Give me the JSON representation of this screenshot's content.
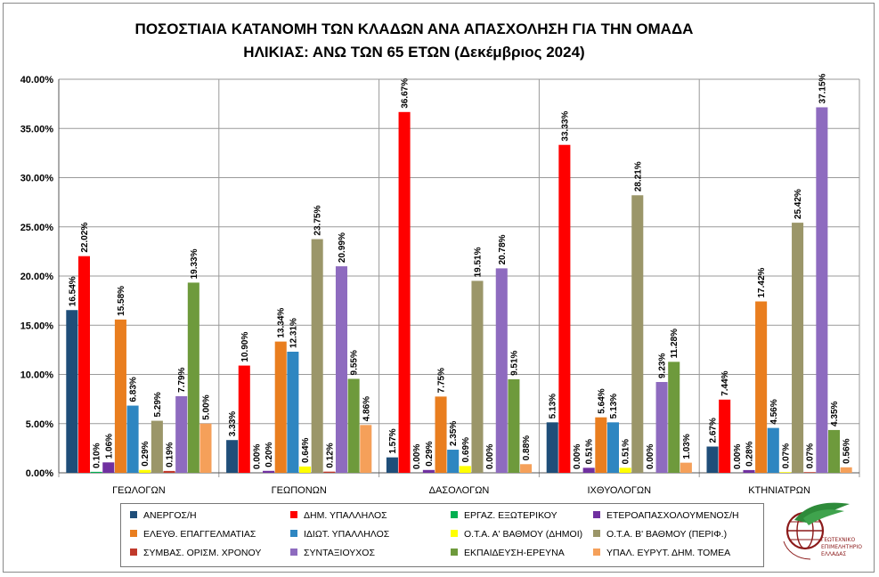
{
  "title_line1": "ΠΟΣΟΣΤΙΑΙΑ ΚΑΤΑΝΟΜΗ  ΤΩΝ ΚΛΑΔΩΝ ΑΝΑ ΑΠΑΣΧΟΛΗΣΗ ΓΙΑ ΤΗΝ ΟΜΑΔΑ",
  "title_line2": "ΗΛΙΚΙΑΣ: ΑΝΩ ΤΩΝ 65 ΕΤΩΝ (Δεκέμβριος 2024)",
  "logo": {
    "text": "ΓΕΩΤΕΧΝΙΚΟ ΕΠΙΜΕΛΗΤΗΡΙΟ ΕΛΛΑΔΑΣ"
  },
  "chart_data": {
    "type": "bar",
    "title": "ΠΟΣΟΣΤΙΑΙΑ ΚΑΤΑΝΟΜΗ  ΤΩΝ ΚΛΑΔΩΝ ΑΝΑ ΑΠΑΣΧΟΛΗΣΗ ΓΙΑ ΤΗΝ ΟΜΑΔΑ ΗΛΙΚΙΑΣ: ΑΝΩ ΤΩΝ 65 ΕΤΩΝ (Δεκέμβριος 2024)",
    "categories": [
      "ΓΕΩΛΟΓΩΝ",
      "ΓΕΩΠΟΝΩΝ",
      "ΔΑΣΟΛΟΓΩΝ",
      "ΙΧΘΥΟΛΟΓΩΝ",
      "ΚΤΗΝΙΑΤΡΩΝ"
    ],
    "ylim": [
      0,
      40
    ],
    "yticks": [
      0,
      5,
      10,
      15,
      20,
      25,
      30,
      35,
      40
    ],
    "ytick_labels": [
      "0.00%",
      "5.00%",
      "10.00%",
      "15.00%",
      "20.00%",
      "25.00%",
      "30.00%",
      "35.00%",
      "40.00%"
    ],
    "grid": true,
    "legend_position": "bottom",
    "series": [
      {
        "name": "ΑΝΕΡΓΟΣ/Η",
        "color": "#1f4e79",
        "values": [
          16.54,
          3.33,
          1.57,
          5.13,
          2.67
        ],
        "labels": [
          "16.54%",
          "3.33%",
          "1.57%",
          "5.13%",
          "2.67%"
        ]
      },
      {
        "name": "ΔΗΜ. ΥΠΑΛΛΗΛΟΣ",
        "color": "#ff0000",
        "values": [
          22.02,
          10.9,
          36.67,
          33.33,
          7.44
        ],
        "labels": [
          "22.02%",
          "10.90%",
          "36.67%",
          "33.33%",
          "7.44%"
        ]
      },
      {
        "name": "ΕΡΓΑΖ. ΕΞΩΤΕΡΙΚΟΥ",
        "color": "#00b050",
        "values": [
          0.1,
          0.0,
          0.0,
          0.0,
          0.0
        ],
        "labels": [
          "0.10%",
          "0.00%",
          "0.00%",
          "0.00%",
          "0.00%"
        ]
      },
      {
        "name": "ΕΤΕΡΟΑΠΑΣΧΟΛΟΥΜΕΝΟΣ/Η",
        "color": "#7030a0",
        "values": [
          1.06,
          0.2,
          0.29,
          0.51,
          0.28
        ],
        "labels": [
          "1.06%",
          "0.20%",
          "0.29%",
          "0.51%",
          "0.28%"
        ]
      },
      {
        "name": "ΕΛΕΥΘ. ΕΠΑΓΓΕΛΜΑΤΙΑΣ",
        "color": "#e97e1f",
        "values": [
          15.58,
          13.34,
          7.75,
          5.64,
          17.42
        ],
        "labels": [
          "15.58%",
          "13.34%",
          "7.75%",
          "5.64%",
          "17.42%"
        ]
      },
      {
        "name": "ΙΔΙΩΤ. ΥΠΑΛΛΗΛΟΣ",
        "color": "#2e86c1",
        "values": [
          6.83,
          12.31,
          2.35,
          5.13,
          4.56
        ],
        "labels": [
          "6.83%",
          "12.31%",
          "2.35%",
          "5.13%",
          "4.56%"
        ]
      },
      {
        "name": "Ο.Τ.Α. Α' ΒΑΘΜΟΥ (ΔΗΜΟΙ)",
        "color": "#ffff00",
        "values": [
          0.29,
          0.64,
          0.69,
          0.51,
          0.07
        ],
        "labels": [
          "0.29%",
          "0.64%",
          "0.69%",
          "0.51%",
          "0.07%"
        ]
      },
      {
        "name": "Ο.Τ.Α. Β' ΒΑΘΜΟΥ (ΠΕΡΙΦ.)",
        "color": "#9b9669",
        "values": [
          5.29,
          23.75,
          19.51,
          28.21,
          25.42
        ],
        "labels": [
          "5.29%",
          "23.75%",
          "19.51%",
          "28.21%",
          "25.42%"
        ]
      },
      {
        "name": "ΣΥΜΒΑΣ. ΟΡΙΣΜ. ΧΡΟΝΟΥ",
        "color": "#c0392b",
        "values": [
          0.19,
          0.12,
          0.0,
          0.0,
          0.07
        ],
        "labels": [
          "0.19%",
          "0.12%",
          "0.00%",
          "0.00%",
          "0.07%"
        ]
      },
      {
        "name": "ΣΥΝΤΑΞΙΟΥΧΟΣ",
        "color": "#8e6bbf",
        "values": [
          7.79,
          20.99,
          20.78,
          9.23,
          37.15
        ],
        "labels": [
          "7.79%",
          "20.99%",
          "20.78%",
          "9.23%",
          "37.15%"
        ]
      },
      {
        "name": "ΕΚΠΑΙΔΕΥΣΗ-ΕΡΕΥΝΑ",
        "color": "#6e9a3c",
        "values": [
          19.33,
          9.55,
          9.51,
          11.28,
          4.35
        ],
        "labels": [
          "19.33%",
          "9.55%",
          "9.51%",
          "11.28%",
          "4.35%"
        ]
      },
      {
        "name": "ΥΠΑΛ. ΕΥΡΥΤ. ΔΗΜ. ΤΟΜΕΑ",
        "color": "#f5a05a",
        "values": [
          5.0,
          4.86,
          0.88,
          1.03,
          0.56
        ],
        "labels": [
          "5.00%",
          "4.86%",
          "0.88%",
          "1.03%",
          "0.56%"
        ]
      }
    ]
  }
}
